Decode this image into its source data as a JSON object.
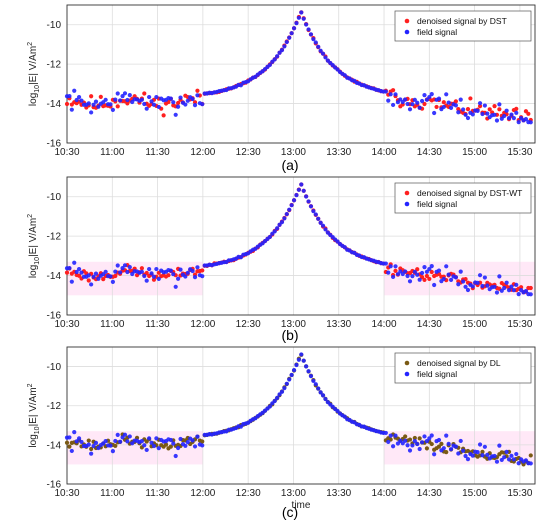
{
  "colors": {
    "denoised_dst": "#ff2020",
    "denoised_dstwt": "#ff2020",
    "denoised_dl": "#7a5a14",
    "field": "#2424ff",
    "band": "#ffd6f0",
    "grid": "#dddddd"
  },
  "chart_data": [
    {
      "type": "scatter",
      "caption": "(a)",
      "ylabel_prefix": "log",
      "ylabel_sub": "10",
      "ylabel_main": "|E| V/Am",
      "ylabel_sup": "2",
      "xlabel": "",
      "x_ticks": [
        "10:30",
        "11:00",
        "11:30",
        "12:00",
        "12:30",
        "13:00",
        "13:30",
        "14:00",
        "14:30",
        "15:00",
        "15:30"
      ],
      "y_ticks": [
        "-16",
        "-14",
        "-12",
        "-10"
      ],
      "xlim": [
        "10:30",
        "15:40"
      ],
      "ylim": [
        -16,
        -9
      ],
      "grid": true,
      "legend_position": "top-right",
      "highlight_bands": [],
      "series": [
        {
          "name": "denoised signal by DST",
          "seed": 11
        },
        {
          "name": "field signal",
          "seed": 7
        }
      ]
    },
    {
      "type": "scatter",
      "caption": "(b)",
      "ylabel_prefix": "log",
      "ylabel_sub": "10",
      "ylabel_main": "|E| V/Am",
      "ylabel_sup": "2",
      "xlabel": "",
      "x_ticks": [
        "10:30",
        "11:00",
        "11:30",
        "12:00",
        "12:30",
        "13:00",
        "13:30",
        "14:00",
        "14:30",
        "15:00",
        "15:30"
      ],
      "y_ticks": [
        "-16",
        "-14",
        "-12",
        "-10"
      ],
      "xlim": [
        "10:30",
        "15:40"
      ],
      "ylim": [
        -16,
        -9
      ],
      "grid": true,
      "legend_position": "top-right",
      "highlight_bands": [
        [
          "10:30",
          "12:00"
        ],
        [
          "14:00",
          "15:40"
        ]
      ],
      "series": [
        {
          "name": "denoised signal by DST-WT",
          "seed": 23
        },
        {
          "name": "field signal",
          "seed": 7
        }
      ]
    },
    {
      "type": "scatter",
      "caption": "(c)",
      "ylabel_prefix": "log",
      "ylabel_sub": "10",
      "ylabel_main": "|E| V/Am",
      "ylabel_sup": "2",
      "xlabel": "time",
      "x_ticks": [
        "10:30",
        "11:00",
        "11:30",
        "12:00",
        "12:30",
        "13:00",
        "13:30",
        "14:00",
        "14:30",
        "15:00",
        "15:30"
      ],
      "y_ticks": [
        "-16",
        "-14",
        "-12",
        "-10"
      ],
      "xlim": [
        "10:30",
        "15:40"
      ],
      "ylim": [
        -16,
        -9
      ],
      "grid": true,
      "legend_position": "top-right",
      "highlight_bands": [
        [
          "10:30",
          "12:00"
        ],
        [
          "14:00",
          "15:40"
        ]
      ],
      "series": [
        {
          "name": "denoised signal by DL",
          "seed": 37
        },
        {
          "name": "field signal",
          "seed": 7
        }
      ]
    }
  ]
}
